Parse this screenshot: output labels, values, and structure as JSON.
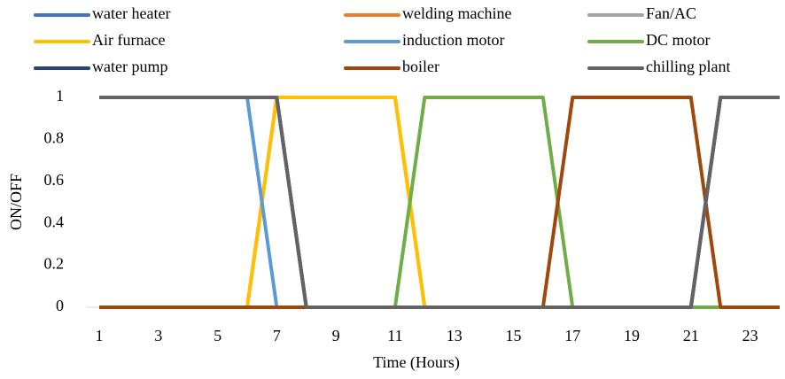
{
  "chart_data": {
    "type": "line",
    "x_label": "Time (Hours)",
    "y_label": "ON/OFF",
    "x": [
      1,
      2,
      3,
      4,
      5,
      6,
      7,
      8,
      9,
      10,
      11,
      12,
      13,
      14,
      15,
      16,
      17,
      18,
      19,
      20,
      21,
      22,
      23,
      24
    ],
    "xlim": [
      1,
      24
    ],
    "xticks": [
      1,
      3,
      5,
      7,
      9,
      11,
      13,
      15,
      17,
      19,
      21,
      23
    ],
    "ylim": [
      0,
      1
    ],
    "yticks": [
      0,
      0.2,
      0.4,
      0.6,
      0.8,
      1
    ],
    "series": [
      {
        "name": "water heater",
        "color": "#4472c4",
        "values": [
          1,
          1,
          1,
          1,
          1,
          1,
          1,
          0,
          0,
          0,
          0,
          0,
          0,
          0,
          0,
          0,
          0,
          0,
          0,
          0,
          0,
          1,
          1,
          1
        ]
      },
      {
        "name": "welding machine",
        "color": "#ed7d31",
        "values": [
          0,
          0,
          0,
          0,
          0,
          0,
          1,
          1,
          1,
          1,
          1,
          0,
          0,
          0,
          0,
          0,
          0,
          0,
          0,
          0,
          0,
          0,
          0,
          0
        ]
      },
      {
        "name": "Fan/AC",
        "color": "#a5a5a5",
        "values": [
          1,
          1,
          1,
          1,
          1,
          1,
          1,
          0,
          0,
          0,
          0,
          0,
          0,
          0,
          0,
          0,
          0,
          0,
          0,
          0,
          0,
          1,
          1,
          1
        ]
      },
      {
        "name": "Air furnace",
        "color": "#ffc000",
        "values": [
          0,
          0,
          0,
          0,
          0,
          0,
          1,
          1,
          1,
          1,
          1,
          0,
          0,
          0,
          0,
          0,
          0,
          0,
          0,
          0,
          0,
          0,
          0,
          0
        ]
      },
      {
        "name": "induction motor",
        "color": "#5b9bd5",
        "values": [
          1,
          1,
          1,
          1,
          1,
          1,
          0,
          0,
          0,
          0,
          0,
          0,
          0,
          0,
          0,
          0,
          0,
          0,
          0,
          0,
          0,
          0,
          0,
          0
        ]
      },
      {
        "name": "DC motor",
        "color": "#70ad47",
        "values": [
          0,
          0,
          0,
          0,
          0,
          0,
          0,
          0,
          0,
          0,
          0,
          1,
          1,
          1,
          1,
          1,
          0,
          0,
          0,
          0,
          0,
          0,
          0,
          0
        ]
      },
      {
        "name": "water pump",
        "color": "#264478",
        "values": [
          1,
          1,
          1,
          1,
          1,
          1,
          1,
          0,
          0,
          0,
          0,
          0,
          0,
          0,
          0,
          0,
          0,
          0,
          0,
          0,
          0,
          1,
          1,
          1
        ]
      },
      {
        "name": "boiler",
        "color": "#9e480e",
        "values": [
          0,
          0,
          0,
          0,
          0,
          0,
          0,
          0,
          0,
          0,
          0,
          0,
          0,
          0,
          0,
          0,
          1,
          1,
          1,
          1,
          1,
          0,
          0,
          0
        ]
      },
      {
        "name": "chilling plant",
        "color": "#636363",
        "values": [
          1,
          1,
          1,
          1,
          1,
          1,
          1,
          0,
          0,
          0,
          0,
          0,
          0,
          0,
          0,
          0,
          0,
          0,
          0,
          0,
          0,
          1,
          1,
          1
        ]
      }
    ]
  }
}
